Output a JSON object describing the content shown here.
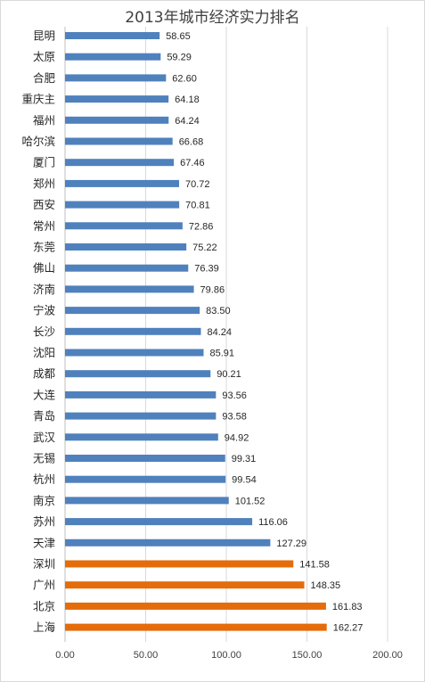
{
  "chart_data": {
    "type": "bar",
    "orientation": "horizontal",
    "title": "2013年城市经济实力排名",
    "categories": [
      "昆明",
      "太原",
      "合肥",
      "重庆主",
      "福州",
      "哈尔滨",
      "厦门",
      "郑州",
      "西安",
      "常州",
      "东莞",
      "佛山",
      "济南",
      "宁波",
      "长沙",
      "沈阳",
      "成都",
      "大连",
      "青岛",
      "武汉",
      "无锡",
      "杭州",
      "南京",
      "苏州",
      "天津",
      "深圳",
      "广州",
      "北京",
      "上海"
    ],
    "values": [
      58.65,
      59.29,
      62.6,
      64.18,
      64.24,
      66.68,
      67.46,
      70.72,
      70.81,
      72.86,
      75.22,
      76.39,
      79.86,
      83.5,
      84.24,
      85.91,
      90.21,
      93.56,
      93.58,
      94.92,
      99.31,
      99.54,
      101.52,
      116.06,
      127.29,
      141.58,
      148.35,
      161.83,
      162.27
    ],
    "value_labels": [
      "58.65",
      "59.29",
      "62.60",
      "64.18",
      "64.24",
      "66.68",
      "67.46",
      "70.72",
      "70.81",
      "72.86",
      "75.22",
      "76.39",
      "79.86",
      "83.50",
      "84.24",
      "85.91",
      "90.21",
      "93.56",
      "93.58",
      "94.92",
      "99.31",
      "99.54",
      "101.52",
      "116.06",
      "127.29",
      "141.58",
      "148.35",
      "161.83",
      "162.27"
    ],
    "highlighted": [
      false,
      false,
      false,
      false,
      false,
      false,
      false,
      false,
      false,
      false,
      false,
      false,
      false,
      false,
      false,
      false,
      false,
      false,
      false,
      false,
      false,
      false,
      false,
      false,
      false,
      true,
      true,
      true,
      true
    ],
    "xlim": [
      0,
      200
    ],
    "xticks": [
      "0.00",
      "50.00",
      "100.00",
      "150.00",
      "200.00"
    ],
    "grid": true,
    "colors": {
      "default": "#4f81bd",
      "highlight": "#e46c0a",
      "gridline": "#d9d9d9",
      "axis": "#bfbfbf"
    }
  }
}
